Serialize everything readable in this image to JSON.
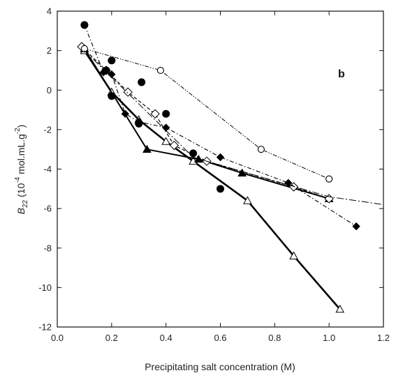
{
  "chart_data": {
    "type": "scatter",
    "panel_label": "b",
    "xlabel": "Precipitating salt concentration (M)",
    "ylabel": "B22 (10-4 mol.mL.g-2)",
    "ylabel_parts": {
      "symbol": "B",
      "subscript": "22",
      "lead": "(10",
      "exp1": "-4",
      "mid": " mol.mL.g",
      "exp2": "-2",
      "tail": ")"
    },
    "xlim": [
      0.0,
      1.2
    ],
    "ylim": [
      -12,
      4
    ],
    "x_ticks": [
      0.0,
      0.2,
      0.4,
      0.6,
      0.8,
      1.0,
      1.2
    ],
    "x_tick_labels": [
      "0.0",
      "0.2",
      "0.4",
      "0.6",
      "0.8",
      "1.0",
      "1.2"
    ],
    "y_ticks": [
      -12,
      -10,
      -8,
      -6,
      -4,
      -2,
      0,
      2,
      4
    ],
    "y_tick_labels": [
      "-12",
      "-10",
      "-8",
      "-6",
      "-4",
      "-2",
      "0",
      "2",
      "4"
    ],
    "grid": false,
    "series": [
      {
        "marker": "open-triangle",
        "line": "solid-thick",
        "color": "#000000",
        "x": [
          0.1,
          0.2,
          0.3,
          0.4,
          0.5,
          0.7,
          0.87,
          1.04
        ],
        "y": [
          2.0,
          -0.1,
          -1.5,
          -2.6,
          -3.6,
          -5.6,
          -8.4,
          -11.1
        ]
      },
      {
        "marker": "filled-triangle",
        "line": "solid-bold",
        "color": "#000000",
        "x": [
          0.1,
          0.33,
          0.52,
          0.68,
          1.0
        ],
        "y": [
          2.1,
          -3.0,
          -3.5,
          -4.2,
          -5.5
        ]
      },
      {
        "marker": "open-diamond",
        "line": "dashed",
        "color": "#000000",
        "x": [
          0.09,
          0.18,
          0.26,
          0.36,
          0.43,
          0.55,
          0.87,
          1.0
        ],
        "y": [
          2.2,
          1.0,
          -0.1,
          -1.2,
          -2.8,
          -3.6,
          -4.9,
          -5.5
        ]
      },
      {
        "marker": "filled-diamond",
        "line": "dash-dot",
        "color": "#000000",
        "x": [
          0.1,
          0.17,
          0.2,
          0.25,
          0.3,
          0.4,
          0.6,
          0.85,
          1.1
        ],
        "y": [
          3.3,
          0.9,
          0.8,
          -1.2,
          -1.6,
          -1.9,
          -3.4,
          -4.7,
          -6.9
        ]
      },
      {
        "marker": "filled-circle",
        "line": "none",
        "color": "#000000",
        "x": [
          0.1,
          0.18,
          0.2,
          0.2,
          0.31,
          0.3,
          0.4,
          0.5,
          0.6
        ],
        "y": [
          3.3,
          1.0,
          1.5,
          -0.3,
          0.4,
          -1.7,
          -1.2,
          -3.2,
          -5.0
        ]
      },
      {
        "marker": "open-circle",
        "line": "dash-dot-dot",
        "color": "#000000",
        "x": [
          0.1,
          0.38,
          0.75,
          1.0
        ],
        "y": [
          2.1,
          1.0,
          -3.0,
          -4.5
        ]
      },
      {
        "marker": "none",
        "line": "dash-dot-long",
        "color": "#000000",
        "x": [
          0.1,
          0.5,
          1.0,
          1.2
        ],
        "y": [
          2.0,
          -3.4,
          -5.4,
          -5.8
        ]
      }
    ]
  }
}
